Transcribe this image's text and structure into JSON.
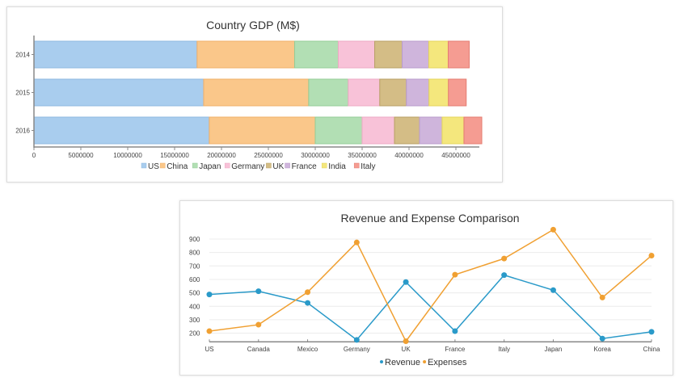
{
  "chart_data": [
    {
      "id": "gdp",
      "type": "bar",
      "orientation": "horizontal",
      "stacked": true,
      "title": "Country GDP (M$)",
      "xlabel": "",
      "ylabel": "",
      "categories": [
        "2014",
        "2015",
        "2016"
      ],
      "xlim": [
        0,
        47500000
      ],
      "xticks": [
        0,
        5000000,
        10000000,
        15000000,
        20000000,
        25000000,
        30000000,
        35000000,
        40000000,
        45000000
      ],
      "xtick_labels": [
        "0",
        "5000000",
        "10000000",
        "15000000",
        "20000000",
        "25000000",
        "30000000",
        "35000000",
        "40000000",
        "45000000"
      ],
      "grid": false,
      "legend_position": "bottom",
      "series": [
        {
          "name": "US",
          "color": "#a9cdee",
          "stroke": "#8fb9e0",
          "values": [
            17400000,
            18100000,
            18700000
          ]
        },
        {
          "name": "China",
          "color": "#fac78a",
          "stroke": "#f0b06a",
          "values": [
            10400000,
            11200000,
            11300000
          ]
        },
        {
          "name": "Japan",
          "color": "#b2dfb4",
          "stroke": "#94cc97",
          "values": [
            4660000,
            4220000,
            5000000
          ]
        },
        {
          "name": "Germany",
          "color": "#f8c2d8",
          "stroke": "#eea9c5",
          "values": [
            3880000,
            3360000,
            3450000
          ]
        },
        {
          "name": "UK",
          "color": "#d4bd86",
          "stroke": "#b8a066",
          "values": [
            2930000,
            2840000,
            2670000
          ]
        },
        {
          "name": "France",
          "color": "#cfb5dc",
          "stroke": "#b99ccb",
          "values": [
            2840000,
            2410000,
            2410000
          ]
        },
        {
          "name": "India",
          "color": "#f4e77d",
          "stroke": "#e4d55c",
          "values": [
            2070000,
            2070000,
            2330000
          ]
        },
        {
          "name": "Italy",
          "color": "#f59c92",
          "stroke": "#e47d72",
          "values": [
            2240000,
            1900000,
            1900000
          ]
        }
      ]
    },
    {
      "id": "revenue",
      "type": "line",
      "title": "Revenue and Expense Comparison",
      "xlabel": "",
      "ylabel": "",
      "categories": [
        "US",
        "Canada",
        "Mexico",
        "Germany",
        "UK",
        "France",
        "Italy",
        "Japan",
        "Korea",
        "China"
      ],
      "ylim": [
        136,
        900
      ],
      "yticks": [
        200,
        300,
        400,
        500,
        600,
        700,
        800,
        900
      ],
      "grid": true,
      "legend_position": "bottom",
      "series": [
        {
          "name": "Revenue",
          "color": "#2a9ac9",
          "values": [
            488,
            512,
            425,
            150,
            580,
            215,
            632,
            520,
            160,
            210
          ]
        },
        {
          "name": "Expenses",
          "color": "#f0a032",
          "values": [
            215,
            263,
            505,
            875,
            140,
            635,
            755,
            970,
            465,
            777
          ]
        }
      ]
    }
  ]
}
